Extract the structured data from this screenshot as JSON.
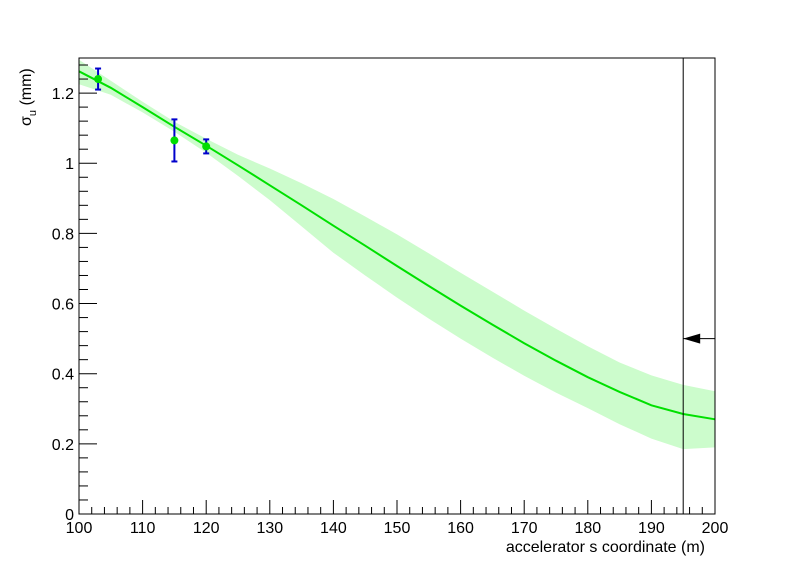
{
  "chart_data": {
    "type": "scatter",
    "title": "",
    "xlabel": "accelerator s coordinate (m)",
    "ylabel": {
      "symbol": "σ",
      "subscript": "u",
      "suffix": " (mm)"
    },
    "xlim": [
      100,
      200
    ],
    "ylim": [
      0,
      1.3
    ],
    "x_ticks": [
      100,
      110,
      120,
      130,
      140,
      150,
      160,
      170,
      180,
      190,
      200
    ],
    "x_tick_labels": [
      "100",
      "110",
      "120",
      "130",
      "140",
      "150",
      "160",
      "170",
      "180",
      "190",
      "200"
    ],
    "y_ticks": [
      0,
      0.2,
      0.4,
      0.6,
      0.8,
      1,
      1.2
    ],
    "y_tick_labels": [
      "0",
      "0.2",
      "0.4",
      "0.6",
      "0.8",
      "1",
      "1.2"
    ],
    "grid": false,
    "legend": "none",
    "measurements": {
      "color": "#00dd00",
      "error_bar_color": "#0000cc",
      "points": [
        {
          "x": 103,
          "y": 1.24,
          "err": 0.03
        },
        {
          "x": 115,
          "y": 1.065,
          "err": 0.06
        },
        {
          "x": 120,
          "y": 1.048,
          "err": 0.02
        }
      ]
    },
    "fit_curve": {
      "color": "#00e000",
      "x": [
        100,
        105,
        110,
        115,
        120,
        125,
        130,
        135,
        140,
        145,
        150,
        155,
        160,
        165,
        170,
        175,
        180,
        185,
        190,
        195,
        200
      ],
      "y": [
        1.262,
        1.215,
        1.16,
        1.104,
        1.05,
        0.994,
        0.937,
        0.88,
        0.822,
        0.765,
        0.707,
        0.65,
        0.594,
        0.54,
        0.487,
        0.437,
        0.39,
        0.348,
        0.31,
        0.285,
        0.27
      ]
    },
    "confidence_band": {
      "color": "#ccfccc",
      "x": [
        100,
        105,
        110,
        115,
        120,
        125,
        130,
        135,
        140,
        145,
        150,
        155,
        160,
        165,
        170,
        175,
        180,
        185,
        190,
        195,
        200
      ],
      "upper": [
        1.295,
        1.235,
        1.175,
        1.118,
        1.07,
        1.024,
        0.985,
        0.943,
        0.898,
        0.848,
        0.797,
        0.743,
        0.688,
        0.634,
        0.58,
        0.528,
        0.478,
        0.432,
        0.395,
        0.368,
        0.35
      ],
      "lower": [
        1.225,
        1.195,
        1.145,
        1.09,
        1.03,
        0.964,
        0.895,
        0.82,
        0.745,
        0.68,
        0.617,
        0.557,
        0.5,
        0.446,
        0.394,
        0.346,
        0.302,
        0.256,
        0.215,
        0.185,
        0.19
      ]
    },
    "vertical_line": {
      "x": 195,
      "color": "#000000"
    },
    "marker_arrow": {
      "x": 200,
      "y": 0.5,
      "direction": "left",
      "color": "#000000"
    }
  }
}
